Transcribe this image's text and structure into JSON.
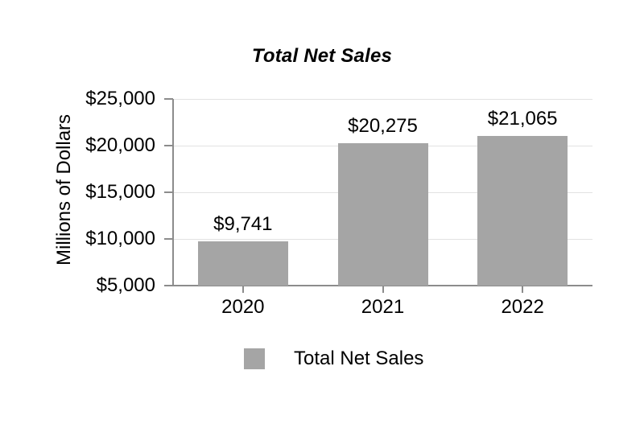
{
  "chart_data": {
    "type": "bar",
    "title": "Total Net Sales",
    "ylabel": "Millions of Dollars",
    "xlabel": "",
    "categories": [
      "2020",
      "2021",
      "2022"
    ],
    "values": [
      9741,
      20275,
      21065
    ],
    "data_labels": [
      "$9,741",
      "$20,275",
      "$21,065"
    ],
    "y_ticks": [
      {
        "value": 25000,
        "label": "$25,000"
      },
      {
        "value": 20000,
        "label": "$20,000"
      },
      {
        "value": 15000,
        "label": "$15,000"
      },
      {
        "value": 10000,
        "label": "$10,000"
      },
      {
        "value": 5000,
        "label": "$5,000"
      }
    ],
    "ylim": [
      5000,
      25000
    ],
    "grid": true,
    "legend": {
      "label": "Total Net Sales",
      "position": "bottom"
    },
    "colors": {
      "bar": "#a5a5a5",
      "axis": "#8c8c8c",
      "gridline": "#e2e2e2",
      "text": "#000000",
      "background": "#ffffff"
    }
  }
}
